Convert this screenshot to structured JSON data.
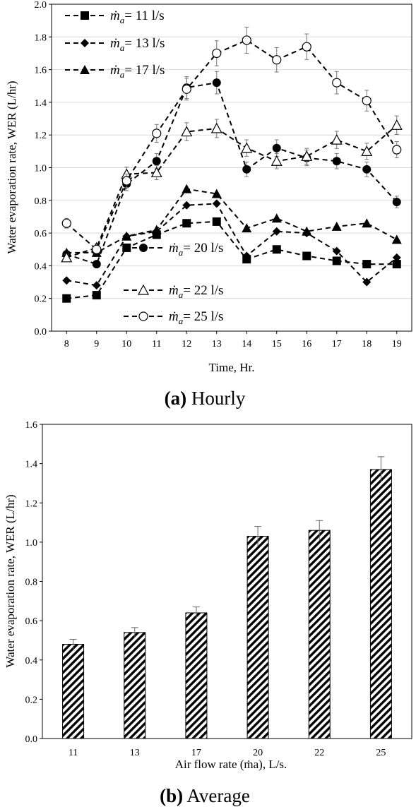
{
  "chart_data": [
    {
      "type": "line",
      "caption_letter": "(a)",
      "caption_text": "Hourly",
      "xlabel": "Time, Hr.",
      "ylabel": "Water evaporation rate,  WER (L/hr)",
      "xlim": [
        7.5,
        19.5
      ],
      "ylim": [
        0,
        2.0
      ],
      "yticks": [
        "0.0",
        "0.2",
        "0.4",
        "0.6",
        "0.8",
        "1.0",
        "1.2",
        "1.4",
        "1.6",
        "1.8",
        "2.0"
      ],
      "x": [
        8,
        9,
        10,
        11,
        12,
        13,
        14,
        15,
        16,
        17,
        18,
        19
      ],
      "legend_symbol": "ṁ",
      "legend_subscript": "a",
      "series": [
        {
          "name": "= 11 l/s",
          "marker": "square",
          "values": [
            0.2,
            0.22,
            0.51,
            0.59,
            0.66,
            0.67,
            0.44,
            0.5,
            0.46,
            0.43,
            0.41,
            0.41
          ]
        },
        {
          "name": "= 13 l/s",
          "marker": "diamond",
          "values": [
            0.31,
            0.28,
            0.58,
            0.61,
            0.77,
            0.78,
            0.46,
            0.61,
            0.6,
            0.49,
            0.3,
            0.45
          ]
        },
        {
          "name": "= 17 l/s",
          "marker": "triangle",
          "values": [
            0.48,
            0.48,
            0.58,
            0.62,
            0.87,
            0.84,
            0.63,
            0.69,
            0.61,
            0.64,
            0.66,
            0.56
          ]
        },
        {
          "name": "= 20 l/s",
          "marker": "circle",
          "values": [
            0.47,
            0.41,
            0.9,
            1.04,
            1.49,
            1.52,
            0.99,
            1.12,
            1.06,
            1.04,
            0.99,
            0.79
          ]
        },
        {
          "name": "= 22 l/s",
          "marker": "triangle-open",
          "values": [
            0.45,
            0.51,
            0.96,
            0.97,
            1.22,
            1.24,
            1.12,
            1.04,
            1.07,
            1.17,
            1.1,
            1.26
          ]
        },
        {
          "name": "= 25 l/s",
          "marker": "circle-open",
          "values": [
            0.66,
            0.5,
            0.92,
            1.21,
            1.48,
            1.7,
            1.78,
            1.66,
            1.74,
            1.52,
            1.41,
            1.11
          ]
        }
      ]
    },
    {
      "type": "bar",
      "caption_letter": "(b)",
      "caption_text": "Average",
      "xlabel": "Air flow rate (ṁa), L/s.",
      "ylabel": "Water evaporation rate,  WER (L/hr)",
      "ylim": [
        0,
        1.6
      ],
      "yticks": [
        "0.0",
        "0.2",
        "0.4",
        "0.6",
        "0.8",
        "1.0",
        "1.2",
        "1.4",
        "1.6"
      ],
      "categories": [
        "11",
        "13",
        "17",
        "20",
        "22",
        "25"
      ],
      "values": [
        0.48,
        0.54,
        0.64,
        1.03,
        1.06,
        1.37
      ],
      "errors": [
        0.025,
        0.025,
        0.03,
        0.05,
        0.05,
        0.065
      ]
    }
  ]
}
